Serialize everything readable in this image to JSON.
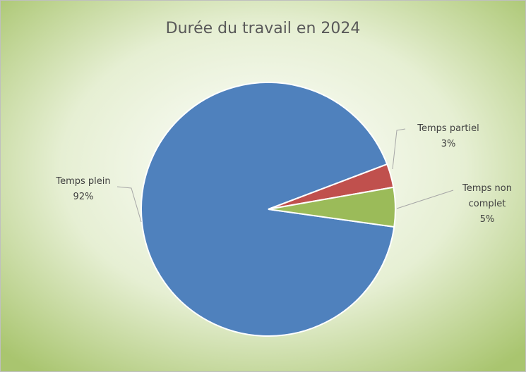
{
  "chart_data": {
    "type": "pie",
    "title": "Durée du travail en 2024",
    "categories": [
      "Temps plein",
      "Temps partiel",
      "Temps non complet"
    ],
    "values": [
      92,
      3,
      5
    ],
    "value_labels": [
      "92%",
      "3%",
      "5%"
    ],
    "colors": [
      "#4f81bd",
      "#c0504d",
      "#9bbb59"
    ]
  }
}
